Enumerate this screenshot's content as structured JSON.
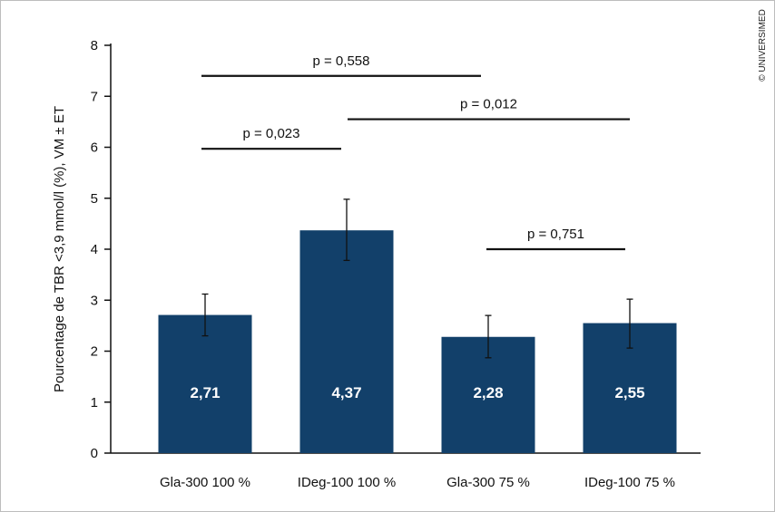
{
  "chart_data": {
    "type": "bar",
    "ylabel": "Pourcentage de TBR <3,9 mmol/l (%), VM ± ET",
    "ylim": [
      0,
      8
    ],
    "yticks": [
      0,
      1,
      2,
      3,
      4,
      5,
      6,
      7,
      8
    ],
    "categories": [
      "Gla-300 100 %",
      "IDeg-100 100 %",
      "Gla-300 75 %",
      "IDeg-100 75 %"
    ],
    "values": [
      2.71,
      4.37,
      2.28,
      2.55
    ],
    "value_labels": [
      "2,71",
      "4,37",
      "2,28",
      "2,55"
    ],
    "error_low": [
      2.3,
      3.78,
      1.87,
      2.06
    ],
    "error_high": [
      3.12,
      4.98,
      2.7,
      3.02
    ],
    "bar_color": "#12406a",
    "comparisons": [
      {
        "label": "p = 0,558",
        "from": 0,
        "to": 2,
        "y": 7.4
      },
      {
        "label": "p = 0,012",
        "from": 1,
        "to": 3,
        "y": 6.55
      },
      {
        "label": "p = 0,023",
        "from": 0,
        "to": 1,
        "y": 5.97
      },
      {
        "label": "p = 0,751",
        "from": 2,
        "to": 3,
        "y": 4.0
      }
    ]
  },
  "copyright": "© UNIVERSIMED"
}
